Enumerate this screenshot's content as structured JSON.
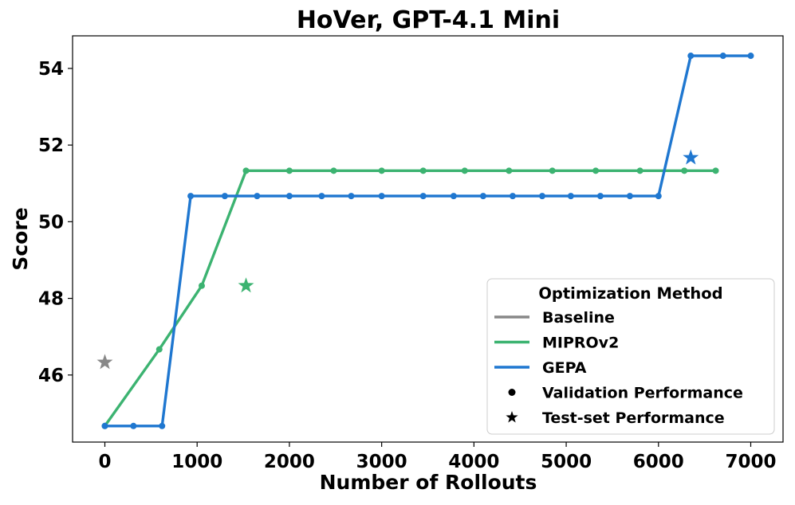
{
  "chart_data": {
    "type": "line",
    "title": "HoVer, GPT-4.1 Mini",
    "xlabel": "Number of Rollouts",
    "ylabel": "Score",
    "xlim": [
      -350,
      7350
    ],
    "ylim": [
      44.25,
      54.85
    ],
    "xticks": [
      0,
      1000,
      2000,
      3000,
      4000,
      5000,
      6000,
      7000
    ],
    "yticks": [
      46,
      48,
      50,
      52,
      54
    ],
    "grid": false,
    "legend": {
      "title": "Optimization Method",
      "placement": "lower-right",
      "entries": [
        {
          "label": "Baseline",
          "kind": "line",
          "color": "#888888"
        },
        {
          "label": "MIPROv2",
          "kind": "line",
          "color": "#3cb371"
        },
        {
          "label": "GEPA",
          "kind": "line",
          "color": "#1f77d0"
        },
        {
          "label": "Validation Performance",
          "kind": "dot",
          "color": "#000000"
        },
        {
          "label": "Test-set Performance",
          "kind": "star",
          "color": "#000000"
        }
      ]
    },
    "series": [
      {
        "name": "MIPROv2",
        "color": "#3cb371",
        "x": [
          0,
          590,
          1050,
          1530,
          2000,
          2480,
          3000,
          3450,
          3900,
          4380,
          4850,
          5320,
          5800,
          6280,
          6620
        ],
        "y": [
          44.67,
          46.67,
          48.33,
          51.33,
          51.33,
          51.33,
          51.33,
          51.33,
          51.33,
          51.33,
          51.33,
          51.33,
          51.33,
          51.33,
          51.33
        ]
      },
      {
        "name": "GEPA",
        "color": "#1f77d0",
        "x": [
          0,
          310,
          620,
          930,
          1300,
          1650,
          2000,
          2350,
          2670,
          3000,
          3450,
          3780,
          4100,
          4420,
          4740,
          5050,
          5370,
          5690,
          6000,
          6350,
          6700,
          7000
        ],
        "y": [
          44.67,
          44.67,
          44.67,
          50.67,
          50.67,
          50.67,
          50.67,
          50.67,
          50.67,
          50.67,
          50.67,
          50.67,
          50.67,
          50.67,
          50.67,
          50.67,
          50.67,
          50.67,
          50.67,
          54.33,
          54.33,
          54.33
        ]
      }
    ],
    "test_points": [
      {
        "name": "Baseline",
        "color": "#888888",
        "x": 0,
        "y": 46.33
      },
      {
        "name": "MIPROv2",
        "color": "#3cb371",
        "x": 1530,
        "y": 48.33
      },
      {
        "name": "GEPA",
        "color": "#1f77d0",
        "x": 6350,
        "y": 51.67
      }
    ]
  }
}
